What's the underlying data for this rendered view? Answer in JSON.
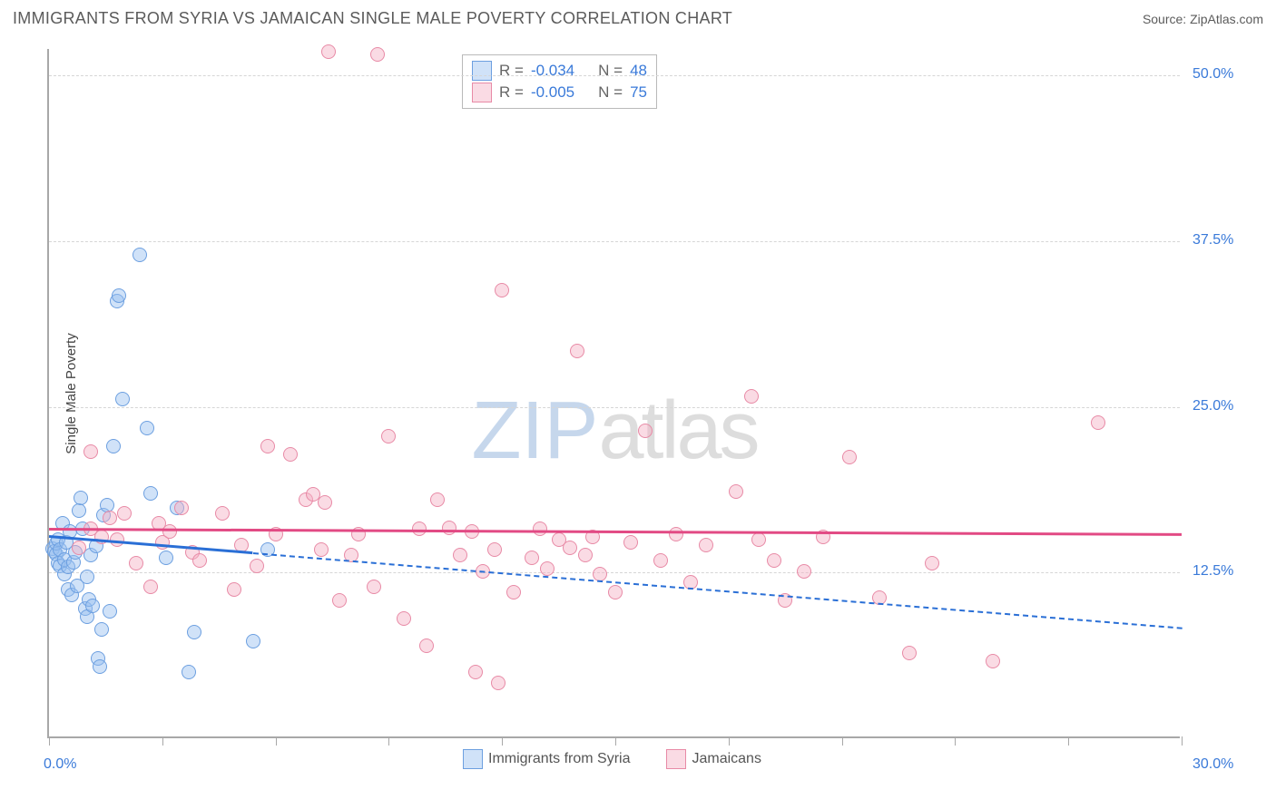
{
  "title": "IMMIGRANTS FROM SYRIA VS JAMAICAN SINGLE MALE POVERTY CORRELATION CHART",
  "source_label": "Source:",
  "source_name": "ZipAtlas.com",
  "watermark_zip": "ZIP",
  "watermark_rest": "atlas",
  "chart": {
    "type": "scatter",
    "xlim": [
      0,
      30
    ],
    "ylim": [
      0,
      52
    ],
    "x_axis_min_label": "0.0%",
    "x_axis_max_label": "30.0%",
    "y_axis_label": "Single Male Poverty",
    "y_ticks": [
      {
        "v": 12.5,
        "label": "12.5%"
      },
      {
        "v": 25.0,
        "label": "25.0%"
      },
      {
        "v": 37.5,
        "label": "37.5%"
      },
      {
        "v": 50.0,
        "label": "50.0%"
      }
    ],
    "x_tick_positions": [
      0,
      3,
      6,
      9,
      12,
      15,
      18,
      21,
      24,
      27,
      30
    ],
    "grid_color": "#d6d6d6",
    "background_color": "#ffffff",
    "label_color": "#3a7ad9",
    "point_radius": 8,
    "point_stroke_width": 1.5,
    "series": [
      {
        "name": "Immigrants from Syria",
        "fill": "rgba(150,190,240,0.45)",
        "stroke": "#6c9fe0",
        "trend_color": "#2a6fd6",
        "trend": {
          "y0": 15.3,
          "y30": 8.4,
          "dashed_after_x_frac": 0.18
        },
        "points": [
          [
            0.1,
            14.3
          ],
          [
            0.15,
            14.1
          ],
          [
            0.2,
            13.9
          ],
          [
            0.2,
            14.7
          ],
          [
            0.25,
            13.2
          ],
          [
            0.25,
            15.0
          ],
          [
            0.3,
            13.0
          ],
          [
            0.3,
            14.2
          ],
          [
            0.35,
            16.2
          ],
          [
            0.4,
            12.4
          ],
          [
            0.4,
            13.5
          ],
          [
            0.45,
            14.8
          ],
          [
            0.5,
            11.2
          ],
          [
            0.5,
            12.9
          ],
          [
            0.55,
            15.6
          ],
          [
            0.6,
            10.8
          ],
          [
            0.65,
            13.3
          ],
          [
            0.7,
            14.0
          ],
          [
            0.75,
            11.5
          ],
          [
            0.8,
            17.2
          ],
          [
            0.85,
            18.1
          ],
          [
            0.9,
            15.8
          ],
          [
            0.95,
            9.8
          ],
          [
            1.0,
            12.2
          ],
          [
            1.0,
            9.2
          ],
          [
            1.05,
            10.5
          ],
          [
            1.1,
            13.8
          ],
          [
            1.15,
            10.0
          ],
          [
            1.25,
            14.5
          ],
          [
            1.3,
            6.0
          ],
          [
            1.35,
            5.4
          ],
          [
            1.4,
            8.2
          ],
          [
            1.45,
            16.8
          ],
          [
            1.55,
            17.6
          ],
          [
            1.6,
            9.6
          ],
          [
            1.7,
            22.0
          ],
          [
            1.8,
            33.0
          ],
          [
            1.85,
            33.4
          ],
          [
            1.95,
            25.6
          ],
          [
            2.4,
            36.5
          ],
          [
            2.6,
            23.4
          ],
          [
            2.7,
            18.5
          ],
          [
            3.1,
            13.6
          ],
          [
            3.4,
            17.4
          ],
          [
            3.7,
            5.0
          ],
          [
            3.85,
            8.0
          ],
          [
            5.4,
            7.3
          ],
          [
            5.8,
            14.2
          ]
        ]
      },
      {
        "name": "Jamaicans",
        "fill": "rgba(245,175,195,0.45)",
        "stroke": "#e88aa6",
        "trend_color": "#e24a84",
        "trend": {
          "y0": 15.9,
          "y30": 15.5,
          "dashed_after_x_frac": 1.0
        },
        "points": [
          [
            0.8,
            14.4
          ],
          [
            1.1,
            15.8
          ],
          [
            1.1,
            21.6
          ],
          [
            1.4,
            15.2
          ],
          [
            1.6,
            16.6
          ],
          [
            1.8,
            15.0
          ],
          [
            2.0,
            17.0
          ],
          [
            2.3,
            13.2
          ],
          [
            2.7,
            11.4
          ],
          [
            2.9,
            16.2
          ],
          [
            3.0,
            14.8
          ],
          [
            3.2,
            15.6
          ],
          [
            3.5,
            17.4
          ],
          [
            3.8,
            14.0
          ],
          [
            4.0,
            13.4
          ],
          [
            4.6,
            17.0
          ],
          [
            4.9,
            11.2
          ],
          [
            5.1,
            14.6
          ],
          [
            5.5,
            13.0
          ],
          [
            5.8,
            22.0
          ],
          [
            6.0,
            15.4
          ],
          [
            6.4,
            21.4
          ],
          [
            6.8,
            18.0
          ],
          [
            7.0,
            18.4
          ],
          [
            7.2,
            14.2
          ],
          [
            7.3,
            17.8
          ],
          [
            7.4,
            51.8
          ],
          [
            7.7,
            10.4
          ],
          [
            8.0,
            13.8
          ],
          [
            8.2,
            15.4
          ],
          [
            8.6,
            11.4
          ],
          [
            8.7,
            51.6
          ],
          [
            9.0,
            22.8
          ],
          [
            9.4,
            9.0
          ],
          [
            9.8,
            15.8
          ],
          [
            10.0,
            7.0
          ],
          [
            10.3,
            18.0
          ],
          [
            10.6,
            15.9
          ],
          [
            10.9,
            13.8
          ],
          [
            11.2,
            15.6
          ],
          [
            11.3,
            5.0
          ],
          [
            11.5,
            12.6
          ],
          [
            11.8,
            14.2
          ],
          [
            11.9,
            4.2
          ],
          [
            12.0,
            33.8
          ],
          [
            12.3,
            11.0
          ],
          [
            12.8,
            13.6
          ],
          [
            13.0,
            15.8
          ],
          [
            13.2,
            12.8
          ],
          [
            13.5,
            15.0
          ],
          [
            13.8,
            14.4
          ],
          [
            14.0,
            29.2
          ],
          [
            14.2,
            13.8
          ],
          [
            14.4,
            15.2
          ],
          [
            14.6,
            12.4
          ],
          [
            15.0,
            11.0
          ],
          [
            15.4,
            14.8
          ],
          [
            15.8,
            23.2
          ],
          [
            16.2,
            13.4
          ],
          [
            16.6,
            15.4
          ],
          [
            17.0,
            11.8
          ],
          [
            17.4,
            14.6
          ],
          [
            18.2,
            18.6
          ],
          [
            18.6,
            25.8
          ],
          [
            18.8,
            15.0
          ],
          [
            19.2,
            13.4
          ],
          [
            19.5,
            10.4
          ],
          [
            20.0,
            12.6
          ],
          [
            20.5,
            15.2
          ],
          [
            21.2,
            21.2
          ],
          [
            22.0,
            10.6
          ],
          [
            22.8,
            6.4
          ],
          [
            23.4,
            13.2
          ],
          [
            25.0,
            5.8
          ],
          [
            27.8,
            23.8
          ]
        ]
      }
    ]
  },
  "stats_legend": {
    "rows": [
      {
        "swatch_fill": "rgba(150,190,240,0.45)",
        "swatch_stroke": "#6c9fe0",
        "r_label": "R =",
        "r": "-0.034",
        "n_label": "N =",
        "n": "48"
      },
      {
        "swatch_fill": "rgba(245,175,195,0.45)",
        "swatch_stroke": "#e88aa6",
        "r_label": "R =",
        "r": "-0.005",
        "n_label": "N =",
        "n": "75"
      }
    ]
  },
  "footer_legend": {
    "items": [
      {
        "swatch_fill": "rgba(150,190,240,0.45)",
        "swatch_stroke": "#6c9fe0",
        "label": "Immigrants from Syria"
      },
      {
        "swatch_fill": "rgba(245,175,195,0.45)",
        "swatch_stroke": "#e88aa6",
        "label": "Jamaicans"
      }
    ]
  }
}
